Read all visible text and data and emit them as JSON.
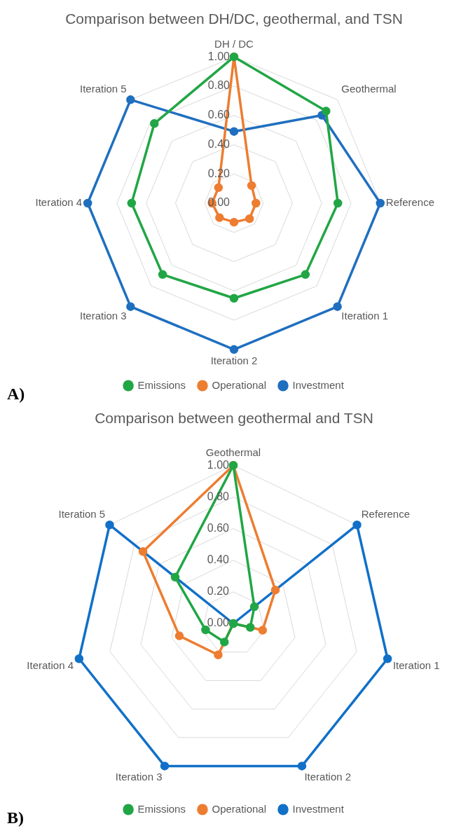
{
  "chart_data": [
    {
      "type": "radar",
      "title": "Comparison between DH/DC, geothermal, and TSN",
      "categories": [
        "DH / DC",
        "Geothermal",
        "Reference",
        "Iteration 1",
        "Iteration 2",
        "Iteration 3",
        "Iteration 4",
        "Iteration 5"
      ],
      "series": [
        {
          "name": "Emissions",
          "color": "#21a645",
          "values": [
            1.0,
            0.89,
            0.71,
            0.69,
            0.65,
            0.69,
            0.7,
            0.77
          ]
        },
        {
          "name": "Operational",
          "color": "#ed7d31",
          "values": [
            1.0,
            0.17,
            0.15,
            0.15,
            0.13,
            0.14,
            0.15,
            0.15
          ]
        },
        {
          "name": "Investment",
          "color": "#1f6fbf",
          "values": [
            0.49,
            0.85,
            1.0,
            1.0,
            1.0,
            1.0,
            1.0,
            1.0
          ]
        }
      ],
      "ylim": [
        0,
        1
      ],
      "yticks": [
        {
          "value": 0,
          "label": "0.00"
        },
        {
          "value": 0.2,
          "label": "0.20"
        },
        {
          "value": 0.4,
          "label": "0.40"
        },
        {
          "value": 0.6,
          "label": "0.60"
        },
        {
          "value": 0.8,
          "label": "0.80"
        },
        {
          "value": 1,
          "label": "1.00"
        }
      ],
      "grid": true,
      "legend": "bottom",
      "marker": "circle",
      "annotations": [
        "A)"
      ]
    },
    {
      "type": "radar",
      "title": "Comparison between geothermal and TSN",
      "categories": [
        "Geothermal",
        "Reference",
        "Iteration 1",
        "Iteration 2",
        "Iteration 3",
        "Iteration 4",
        "Iteration 5"
      ],
      "series": [
        {
          "name": "Emissions",
          "color": "#21a645",
          "values": [
            1.0,
            0.17,
            0.11,
            0,
            0.13,
            0.18,
            0.47
          ]
        },
        {
          "name": "Operational",
          "color": "#ed7d31",
          "values": [
            1.0,
            0.34,
            0.19,
            0,
            0.22,
            0.35,
            0.73
          ]
        },
        {
          "name": "Investment",
          "color": "#1170c8",
          "values": [
            0,
            1.0,
            1.0,
            1.0,
            1.0,
            1.0,
            1.0
          ]
        }
      ],
      "ylim": [
        0,
        1
      ],
      "yticks": [
        {
          "value": 0,
          "label": "0.00"
        },
        {
          "value": 0.2,
          "label": "0.20"
        },
        {
          "value": 0.4,
          "label": "0.40"
        },
        {
          "value": 0.6,
          "label": "0.60"
        },
        {
          "value": 0.8,
          "label": "0.80"
        },
        {
          "value": 1,
          "label": "1.00"
        }
      ],
      "grid": true,
      "legend": "bottom",
      "marker": "circle",
      "annotations": [
        "B)"
      ]
    }
  ]
}
